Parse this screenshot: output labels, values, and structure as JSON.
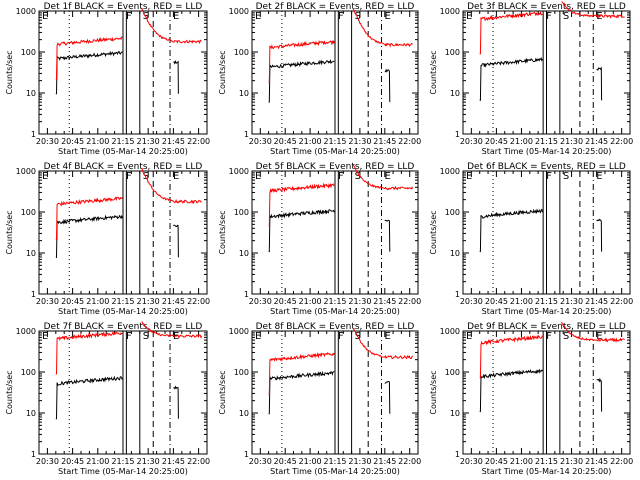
{
  "figure": {
    "background": "#ffffff",
    "xlabel": "Start Time (05-Mar-14 20:25:00)",
    "ylabel": "Counts/sec",
    "yticks": [
      {
        "label": "1",
        "value": 1
      },
      {
        "label": "10",
        "value": 10
      },
      {
        "label": "100",
        "value": 100
      },
      {
        "label": "1000",
        "value": 1000
      }
    ],
    "xticks": [
      "20:30",
      "20:45",
      "21:00",
      "21:15",
      "21:30",
      "21:45",
      "22:00"
    ],
    "region_labels": [
      "E",
      "F",
      "S",
      "E"
    ],
    "colors": {
      "events": "#000000",
      "lld": "#ff0000",
      "axes": "#000000"
    }
  },
  "chart_data": [
    {
      "type": "line",
      "title": "Det 1f BLACK = Events, RED = LLD",
      "ylog": true,
      "ylim": [
        1,
        1000
      ],
      "xlim": [
        "20:25",
        "22:05"
      ],
      "series": [
        {
          "name": "Events",
          "color": "#000000",
          "base": 80
        },
        {
          "name": "LLD",
          "color": "#ff0000",
          "base": 180
        }
      ],
      "vlines": [
        {
          "time": "20:43",
          "style": "dotted"
        },
        {
          "time": "21:15",
          "style": "solid"
        },
        {
          "time": "21:17",
          "style": "solid"
        },
        {
          "time": "21:25",
          "style": "solid"
        },
        {
          "time": "21:33",
          "style": "dashed"
        },
        {
          "time": "21:43",
          "style": "dashdot"
        }
      ]
    },
    {
      "type": "line",
      "title": "Det 2f BLACK = Events, RED = LLD",
      "ylog": true,
      "ylim": [
        1,
        1000
      ],
      "xlim": [
        "20:25",
        "22:05"
      ],
      "series": [
        {
          "name": "Events",
          "color": "#000000",
          "base": 50
        },
        {
          "name": "LLD",
          "color": "#ff0000",
          "base": 150
        }
      ],
      "vlines": [
        {
          "time": "20:43",
          "style": "dotted"
        },
        {
          "time": "21:15",
          "style": "solid"
        },
        {
          "time": "21:17",
          "style": "solid"
        },
        {
          "time": "21:25",
          "style": "solid"
        },
        {
          "time": "21:35",
          "style": "dashed"
        },
        {
          "time": "21:43",
          "style": "dashdot"
        }
      ]
    },
    {
      "type": "line",
      "title": "Det 3f BLACK = Events, RED = LLD",
      "ylog": true,
      "ylim": [
        1,
        1000
      ],
      "xlim": [
        "20:25",
        "22:05"
      ],
      "series": [
        {
          "name": "Events",
          "color": "#000000",
          "base": 55
        },
        {
          "name": "LLD",
          "color": "#ff0000",
          "base": 750
        }
      ],
      "vlines": [
        {
          "time": "20:43",
          "style": "dotted"
        },
        {
          "time": "21:13",
          "style": "solid"
        },
        {
          "time": "21:15",
          "style": "solid"
        },
        {
          "time": "21:23",
          "style": "solid"
        },
        {
          "time": "21:35",
          "style": "dashed"
        },
        {
          "time": "21:43",
          "style": "dashdot"
        }
      ]
    },
    {
      "type": "line",
      "title": "Det 4f BLACK = Events, RED = LLD",
      "ylog": true,
      "ylim": [
        1,
        1000
      ],
      "xlim": [
        "20:25",
        "22:05"
      ],
      "series": [
        {
          "name": "Events",
          "color": "#000000",
          "base": 65
        },
        {
          "name": "LLD",
          "color": "#ff0000",
          "base": 180
        }
      ],
      "vlines": [
        {
          "time": "20:43",
          "style": "dotted"
        },
        {
          "time": "21:15",
          "style": "solid"
        },
        {
          "time": "21:17",
          "style": "solid"
        },
        {
          "time": "21:25",
          "style": "solid"
        },
        {
          "time": "21:33",
          "style": "dashed"
        },
        {
          "time": "21:43",
          "style": "dashdot"
        }
      ]
    },
    {
      "type": "line",
      "title": "Det 5f BLACK = Events, RED = LLD",
      "ylog": true,
      "ylim": [
        1,
        1000
      ],
      "xlim": [
        "20:25",
        "22:05"
      ],
      "series": [
        {
          "name": "Events",
          "color": "#000000",
          "base": 90
        },
        {
          "name": "LLD",
          "color": "#ff0000",
          "base": 380
        }
      ],
      "vlines": [
        {
          "time": "20:43",
          "style": "dotted"
        },
        {
          "time": "21:15",
          "style": "solid"
        },
        {
          "time": "21:17",
          "style": "solid"
        },
        {
          "time": "21:25",
          "style": "solid"
        },
        {
          "time": "21:35",
          "style": "dashed"
        },
        {
          "time": "21:43",
          "style": "dashdot"
        }
      ]
    },
    {
      "type": "line",
      "title": "Det 6f BLACK = Events, RED = LLD",
      "ylog": true,
      "ylim": [
        1,
        1000
      ],
      "xlim": [
        "20:25",
        "22:05"
      ],
      "series": [
        {
          "name": "Events",
          "color": "#000000",
          "base": 90
        },
        {
          "name": "LLD",
          "color": "#ff0000",
          "base": 0
        }
      ],
      "vlines": [
        {
          "time": "20:43",
          "style": "dotted"
        },
        {
          "time": "21:13",
          "style": "solid"
        },
        {
          "time": "21:15",
          "style": "solid"
        },
        {
          "time": "21:23",
          "style": "solid"
        },
        {
          "time": "21:35",
          "style": "dashed"
        },
        {
          "time": "21:43",
          "style": "dashdot"
        }
      ]
    },
    {
      "type": "line",
      "title": "Det 7f BLACK = Events, RED = LLD",
      "ylog": true,
      "ylim": [
        1,
        1000
      ],
      "xlim": [
        "20:25",
        "22:05"
      ],
      "series": [
        {
          "name": "Events",
          "color": "#000000",
          "base": 60
        },
        {
          "name": "LLD",
          "color": "#ff0000",
          "base": 750
        }
      ],
      "vlines": [
        {
          "time": "20:43",
          "style": "dotted"
        },
        {
          "time": "21:15",
          "style": "solid"
        },
        {
          "time": "21:17",
          "style": "solid"
        },
        {
          "time": "21:25",
          "style": "solid"
        },
        {
          "time": "21:33",
          "style": "dashed"
        },
        {
          "time": "21:43",
          "style": "dashdot"
        }
      ]
    },
    {
      "type": "line",
      "title": "Det 8f BLACK = Events, RED = LLD",
      "ylog": true,
      "ylim": [
        1,
        1000
      ],
      "xlim": [
        "20:25",
        "22:05"
      ],
      "series": [
        {
          "name": "Events",
          "color": "#000000",
          "base": 80
        },
        {
          "name": "LLD",
          "color": "#ff0000",
          "base": 230
        }
      ],
      "vlines": [
        {
          "time": "20:43",
          "style": "dotted"
        },
        {
          "time": "21:15",
          "style": "solid"
        },
        {
          "time": "21:17",
          "style": "solid"
        },
        {
          "time": "21:25",
          "style": "solid"
        },
        {
          "time": "21:35",
          "style": "dashed"
        },
        {
          "time": "21:43",
          "style": "dashdot"
        }
      ]
    },
    {
      "type": "line",
      "title": "Det 9f BLACK = Events, RED = LLD",
      "ylog": true,
      "ylim": [
        1,
        1000
      ],
      "xlim": [
        "20:25",
        "22:05"
      ],
      "series": [
        {
          "name": "Events",
          "color": "#000000",
          "base": 90
        },
        {
          "name": "LLD",
          "color": "#ff0000",
          "base": 600
        }
      ],
      "vlines": [
        {
          "time": "20:43",
          "style": "dotted"
        },
        {
          "time": "21:13",
          "style": "solid"
        },
        {
          "time": "21:15",
          "style": "solid"
        },
        {
          "time": "21:23",
          "style": "solid"
        },
        {
          "time": "21:35",
          "style": "dashed"
        },
        {
          "time": "21:43",
          "style": "dashdot"
        }
      ]
    }
  ]
}
